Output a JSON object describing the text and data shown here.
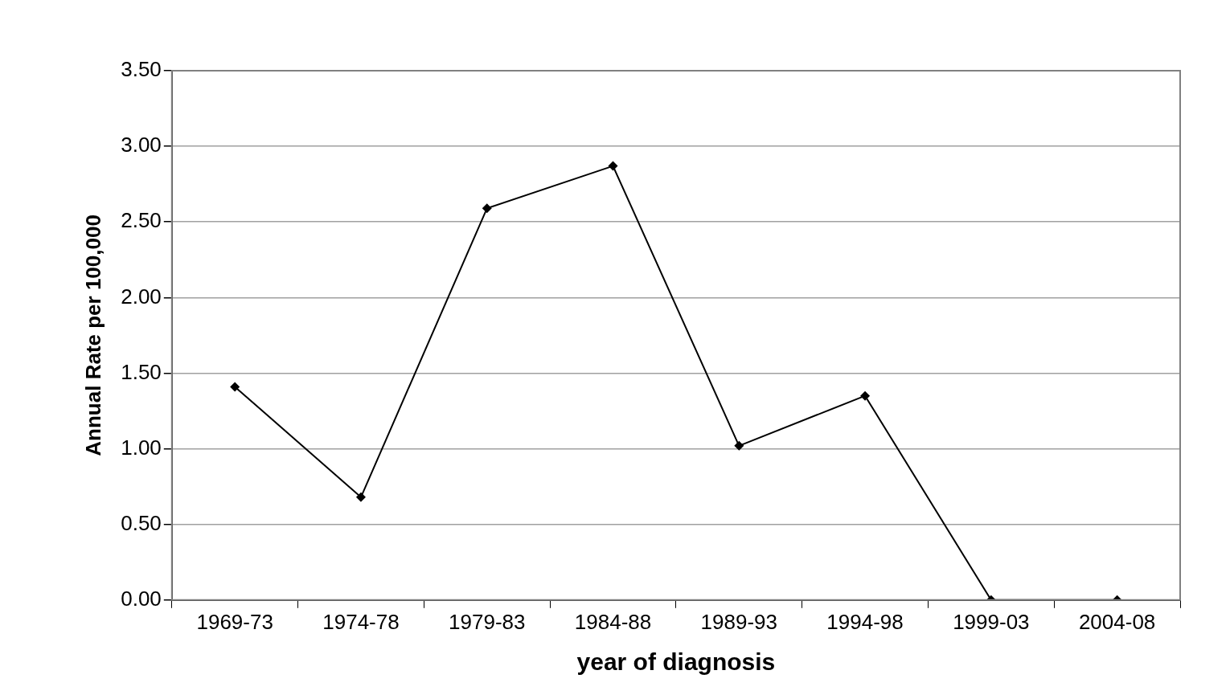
{
  "chart_data": {
    "type": "line",
    "xlabel": "year of diagnosis",
    "ylabel": "Annual Rate per 100,000",
    "categories": [
      "1969-73",
      "1974-78",
      "1979-83",
      "1984-88",
      "1989-93",
      "1994-98",
      "1999-03",
      "2004-08"
    ],
    "series": [
      {
        "color": "#000000",
        "values": [
          1.41,
          0.68,
          2.59,
          2.87,
          1.02,
          1.35,
          0,
          0
        ]
      }
    ],
    "ylim": [
      0,
      3.5
    ],
    "yticks": [
      {
        "value": 0,
        "label": "0.00"
      },
      {
        "value": 0.5,
        "label": "0.50"
      },
      {
        "value": 1,
        "label": "1.00"
      },
      {
        "value": 1.5,
        "label": "1.50"
      },
      {
        "value": 2,
        "label": "2.00"
      },
      {
        "value": 2.5,
        "label": "2.50"
      },
      {
        "value": 3,
        "label": "3.00"
      },
      {
        "value": 3.5,
        "label": "3.50"
      }
    ],
    "grid": "y",
    "legend": false,
    "marker": "diamond",
    "line_style": "solid"
  }
}
